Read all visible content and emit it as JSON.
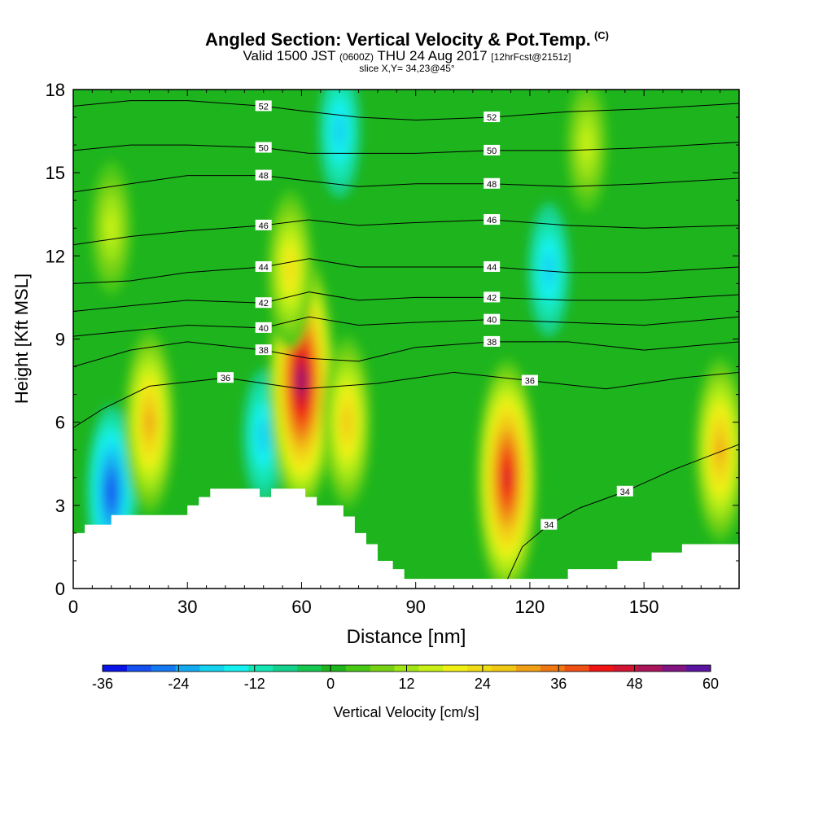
{
  "title": {
    "main": "Angled Section: Vertical Velocity & Pot.Temp.",
    "main_unit": "(C)",
    "valid": "Valid 1500 JST",
    "valid_utc": "(0600Z)",
    "date": "THU 24 Aug 2017",
    "forecast": "[12hrFcst@2151z]",
    "slice": "slice X,Y= 34,23@45°"
  },
  "chart_data": {
    "type": "heatmap",
    "xlabel": "Distance [nm]",
    "ylabel": "Height [Kft MSL]",
    "xlim": [
      0,
      175
    ],
    "ylim": [
      0,
      18
    ],
    "xticks": [
      0,
      30,
      60,
      90,
      120,
      150
    ],
    "yticks": [
      0,
      3,
      6,
      9,
      12,
      15,
      18
    ],
    "colorbar": {
      "label": "Vertical Velocity [cm/s]",
      "min": -36,
      "max": 60,
      "step": 4,
      "ticks": [
        -36,
        -24,
        -12,
        0,
        12,
        24,
        36,
        48,
        60
      ],
      "colors": [
        "#0a14e6",
        "#1450f0",
        "#1478f0",
        "#14aaf0",
        "#14d2f0",
        "#14f0f0",
        "#14e6b4",
        "#14d28c",
        "#14c850",
        "#1eb41e",
        "#46c814",
        "#78d214",
        "#a0e614",
        "#c8f014",
        "#f0f014",
        "#f0dc14",
        "#f0c814",
        "#f0a014",
        "#f07814",
        "#f05014",
        "#f01414",
        "#d21432",
        "#aa145a",
        "#821482",
        "#5a14a0"
      ]
    },
    "velocity_features": [
      {
        "x": 10,
        "y": 3.5,
        "value": -26,
        "kind": "downdraft"
      },
      {
        "x": 20,
        "y": 6.0,
        "value": 32,
        "kind": "updraft"
      },
      {
        "x": 50,
        "y": 5.5,
        "value": -14,
        "kind": "downdraft"
      },
      {
        "x": 60,
        "y": 7.5,
        "value": 56,
        "kind": "updraft"
      },
      {
        "x": 72,
        "y": 6.0,
        "value": 28,
        "kind": "updraft"
      },
      {
        "x": 114,
        "y": 4.0,
        "value": 46,
        "kind": "updraft"
      },
      {
        "x": 170,
        "y": 5.0,
        "value": 30,
        "kind": "updraft"
      },
      {
        "x": 57,
        "y": 11.5,
        "value": 22,
        "kind": "updraft"
      },
      {
        "x": 10,
        "y": 13,
        "value": 16,
        "kind": "updraft"
      },
      {
        "x": 70,
        "y": 16.5,
        "value": -16,
        "kind": "downdraft"
      },
      {
        "x": 125,
        "y": 11.5,
        "value": -14,
        "kind": "downdraft"
      },
      {
        "x": 135,
        "y": 16,
        "value": 14,
        "kind": "updraft"
      }
    ],
    "terrain": [
      [
        0,
        2.0
      ],
      [
        3,
        2.0
      ],
      [
        3,
        2.3
      ],
      [
        10,
        2.3
      ],
      [
        10,
        2.65
      ],
      [
        30,
        2.65
      ],
      [
        30,
        3.0
      ],
      [
        33,
        3.0
      ],
      [
        33,
        3.3
      ],
      [
        36,
        3.3
      ],
      [
        36,
        3.6
      ],
      [
        49,
        3.6
      ],
      [
        49,
        3.3
      ],
      [
        52,
        3.3
      ],
      [
        52,
        3.6
      ],
      [
        61,
        3.6
      ],
      [
        61,
        3.3
      ],
      [
        64,
        3.3
      ],
      [
        64,
        3.0
      ],
      [
        71,
        3.0
      ],
      [
        71,
        2.6
      ],
      [
        74,
        2.6
      ],
      [
        74,
        2.0
      ],
      [
        77,
        2.0
      ],
      [
        77,
        1.6
      ],
      [
        80,
        1.6
      ],
      [
        80,
        1.0
      ],
      [
        84,
        1.0
      ],
      [
        84,
        0.7
      ],
      [
        87,
        0.7
      ],
      [
        87,
        0.35
      ],
      [
        130,
        0.35
      ],
      [
        130,
        0.7
      ],
      [
        143,
        0.7
      ],
      [
        143,
        1.0
      ],
      [
        152,
        1.0
      ],
      [
        152,
        1.3
      ],
      [
        160,
        1.3
      ],
      [
        160,
        1.6
      ],
      [
        175,
        1.6
      ]
    ],
    "isentropes": [
      {
        "label": "34",
        "points": [
          [
            113,
            0
          ],
          [
            118,
            1.5
          ],
          [
            125,
            2.3
          ],
          [
            133,
            2.9
          ],
          [
            145,
            3.5
          ],
          [
            158,
            4.3
          ],
          [
            175,
            5.2
          ]
        ]
      },
      {
        "label": "36",
        "points": [
          [
            0,
            5.8
          ],
          [
            8,
            6.5
          ],
          [
            20,
            7.3
          ],
          [
            40,
            7.6
          ],
          [
            60,
            7.2
          ],
          [
            80,
            7.4
          ],
          [
            100,
            7.8
          ],
          [
            120,
            7.5
          ],
          [
            140,
            7.2
          ],
          [
            160,
            7.6
          ],
          [
            175,
            7.8
          ]
        ]
      },
      {
        "label": "38",
        "points": [
          [
            0,
            8.0
          ],
          [
            15,
            8.6
          ],
          [
            30,
            8.9
          ],
          [
            50,
            8.6
          ],
          [
            62,
            8.3
          ],
          [
            75,
            8.2
          ],
          [
            90,
            8.7
          ],
          [
            110,
            8.9
          ],
          [
            130,
            8.9
          ],
          [
            150,
            8.6
          ],
          [
            175,
            8.9
          ]
        ]
      },
      {
        "label": "40",
        "points": [
          [
            0,
            9.1
          ],
          [
            15,
            9.3
          ],
          [
            30,
            9.5
          ],
          [
            50,
            9.4
          ],
          [
            62,
            9.8
          ],
          [
            75,
            9.5
          ],
          [
            90,
            9.6
          ],
          [
            110,
            9.7
          ],
          [
            130,
            9.6
          ],
          [
            150,
            9.5
          ],
          [
            175,
            9.8
          ]
        ]
      },
      {
        "label": "42",
        "points": [
          [
            0,
            10.0
          ],
          [
            15,
            10.2
          ],
          [
            30,
            10.4
          ],
          [
            50,
            10.3
          ],
          [
            62,
            10.7
          ],
          [
            75,
            10.4
          ],
          [
            90,
            10.5
          ],
          [
            110,
            10.5
          ],
          [
            130,
            10.4
          ],
          [
            150,
            10.4
          ],
          [
            175,
            10.6
          ]
        ]
      },
      {
        "label": "44",
        "points": [
          [
            0,
            11.0
          ],
          [
            15,
            11.1
          ],
          [
            30,
            11.4
          ],
          [
            50,
            11.6
          ],
          [
            62,
            11.9
          ],
          [
            75,
            11.6
          ],
          [
            90,
            11.6
          ],
          [
            110,
            11.6
          ],
          [
            130,
            11.4
          ],
          [
            150,
            11.4
          ],
          [
            175,
            11.6
          ]
        ]
      },
      {
        "label": "46",
        "points": [
          [
            0,
            12.4
          ],
          [
            15,
            12.7
          ],
          [
            30,
            12.9
          ],
          [
            50,
            13.1
          ],
          [
            62,
            13.3
          ],
          [
            75,
            13.1
          ],
          [
            90,
            13.2
          ],
          [
            110,
            13.3
          ],
          [
            130,
            13.1
          ],
          [
            150,
            13.0
          ],
          [
            175,
            13.1
          ]
        ]
      },
      {
        "label": "48",
        "points": [
          [
            0,
            14.3
          ],
          [
            15,
            14.6
          ],
          [
            30,
            14.9
          ],
          [
            50,
            14.9
          ],
          [
            62,
            14.7
          ],
          [
            75,
            14.5
          ],
          [
            90,
            14.6
          ],
          [
            110,
            14.6
          ],
          [
            130,
            14.5
          ],
          [
            150,
            14.6
          ],
          [
            175,
            14.8
          ]
        ]
      },
      {
        "label": "50",
        "points": [
          [
            0,
            15.8
          ],
          [
            15,
            16.0
          ],
          [
            30,
            16.0
          ],
          [
            50,
            15.9
          ],
          [
            62,
            15.7
          ],
          [
            75,
            15.7
          ],
          [
            90,
            15.7
          ],
          [
            110,
            15.8
          ],
          [
            130,
            15.8
          ],
          [
            150,
            15.9
          ],
          [
            175,
            16.1
          ]
        ]
      },
      {
        "label": "52",
        "points": [
          [
            0,
            17.4
          ],
          [
            15,
            17.6
          ],
          [
            30,
            17.6
          ],
          [
            50,
            17.4
          ],
          [
            62,
            17.2
          ],
          [
            75,
            17.0
          ],
          [
            90,
            16.9
          ],
          [
            110,
            17.0
          ],
          [
            130,
            17.2
          ],
          [
            150,
            17.3
          ],
          [
            175,
            17.5
          ]
        ]
      }
    ]
  }
}
